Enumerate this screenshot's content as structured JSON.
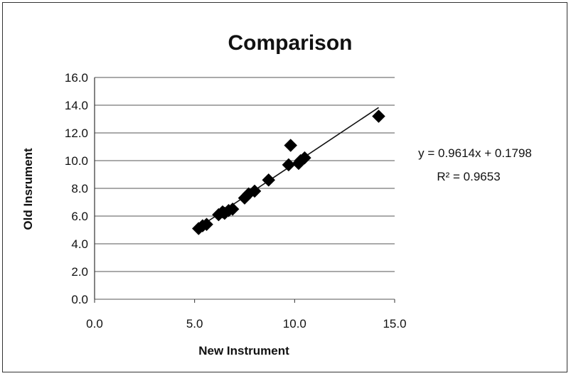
{
  "chart_data": {
    "type": "scatter",
    "title": "Comparison",
    "xlabel": "New Instrument",
    "ylabel": "Old Insrument",
    "xlim": [
      0,
      15
    ],
    "ylim": [
      0,
      16
    ],
    "x_ticks": [
      "0.0",
      "5.0",
      "10.0",
      "15.0"
    ],
    "y_ticks": [
      "0.0",
      "2.0",
      "4.0",
      "6.0",
      "8.0",
      "10.0",
      "12.0",
      "14.0",
      "16.0"
    ],
    "grid": "horizontal",
    "marker": "diamond",
    "marker_color": "#000000",
    "points": [
      {
        "x": 5.2,
        "y": 5.1
      },
      {
        "x": 5.4,
        "y": 5.3
      },
      {
        "x": 5.6,
        "y": 5.4
      },
      {
        "x": 6.2,
        "y": 6.1
      },
      {
        "x": 6.4,
        "y": 6.3
      },
      {
        "x": 6.5,
        "y": 6.2
      },
      {
        "x": 6.7,
        "y": 6.4
      },
      {
        "x": 6.9,
        "y": 6.5
      },
      {
        "x": 7.5,
        "y": 7.3
      },
      {
        "x": 7.7,
        "y": 7.6
      },
      {
        "x": 8.0,
        "y": 7.8
      },
      {
        "x": 8.7,
        "y": 8.6
      },
      {
        "x": 9.7,
        "y": 9.7
      },
      {
        "x": 9.8,
        "y": 11.1
      },
      {
        "x": 10.2,
        "y": 9.8
      },
      {
        "x": 10.3,
        "y": 10.0
      },
      {
        "x": 10.5,
        "y": 10.2
      },
      {
        "x": 14.2,
        "y": 13.2
      }
    ],
    "trendline": {
      "type": "linear",
      "slope": 0.9614,
      "intercept": 0.1798,
      "x_range": [
        5.2,
        14.2
      ],
      "equation": "y = 0.9614x + 0.1798",
      "r_squared": "R² = 0.9653"
    }
  }
}
